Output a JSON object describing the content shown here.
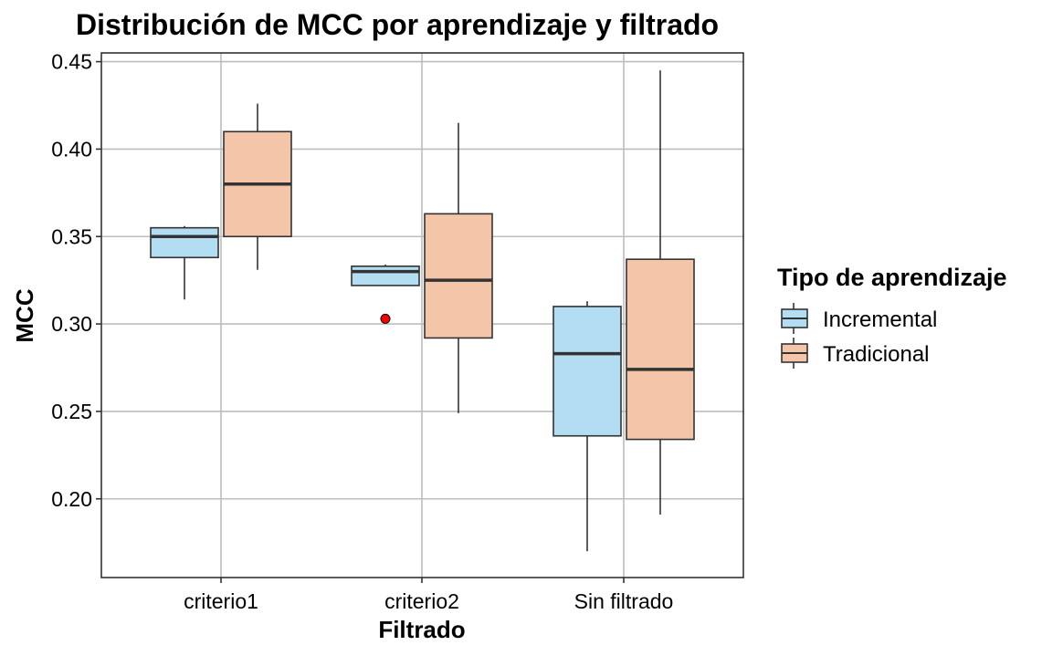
{
  "chart_data": {
    "type": "boxplot",
    "title": "Distribución de MCC por aprendizaje y filtrado",
    "xlabel": "Filtrado",
    "ylabel": "MCC",
    "categories": [
      "criterio1",
      "criterio2",
      "Sin filtrado"
    ],
    "ylim": [
      0.155,
      0.455
    ],
    "yticks": [
      "0.20",
      "0.25",
      "0.30",
      "0.35",
      "0.40",
      "0.45"
    ],
    "grid": true,
    "legend": {
      "title": "Tipo de aprendizaje",
      "position": "right"
    },
    "series": [
      {
        "name": "Incremental",
        "color": "#B3DDF2",
        "boxes": [
          {
            "category": "criterio1",
            "min": 0.314,
            "q1": 0.338,
            "median": 0.35,
            "q3": 0.355,
            "max": 0.356,
            "outliers": []
          },
          {
            "category": "criterio2",
            "min": 0.322,
            "q1": 0.322,
            "median": 0.33,
            "q3": 0.333,
            "max": 0.334,
            "outliers": [
              0.303
            ]
          },
          {
            "category": "Sin filtrado",
            "min": 0.17,
            "q1": 0.236,
            "median": 0.283,
            "q3": 0.31,
            "max": 0.313,
            "outliers": []
          }
        ]
      },
      {
        "name": "Tradicional",
        "color": "#F4C5A8",
        "boxes": [
          {
            "category": "criterio1",
            "min": 0.331,
            "q1": 0.35,
            "median": 0.38,
            "q3": 0.41,
            "max": 0.426,
            "outliers": []
          },
          {
            "category": "criterio2",
            "min": 0.249,
            "q1": 0.292,
            "median": 0.325,
            "q3": 0.363,
            "max": 0.415,
            "outliers": []
          },
          {
            "category": "Sin filtrado",
            "min": 0.191,
            "q1": 0.234,
            "median": 0.274,
            "q3": 0.337,
            "max": 0.445,
            "outliers": []
          }
        ]
      }
    ],
    "outlier_color": "#FF0000"
  }
}
